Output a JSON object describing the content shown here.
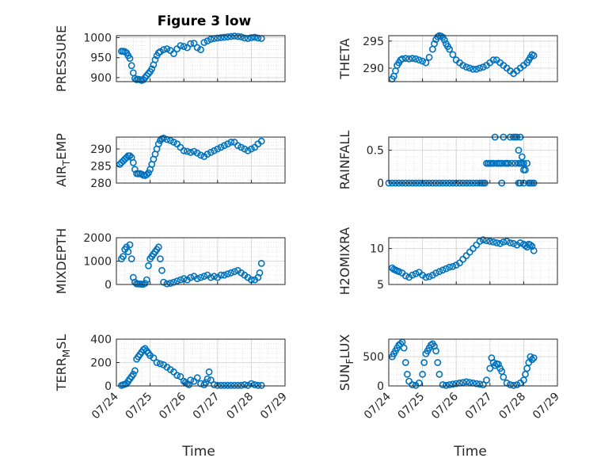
{
  "figure": {
    "title": "Figure 3 low",
    "xlabel": "Time"
  },
  "colors": {
    "marker": "#0072BD",
    "grid": "#d9d9d9",
    "axis": "#262626"
  },
  "x_ticks": [
    "07/24",
    "07/25",
    "07/26",
    "07/27",
    "07/28",
    "07/29"
  ],
  "chart_data": [
    {
      "type": "scatter",
      "ylabel": "PRESSURE",
      "title": "Figure 3 low",
      "xlim": [
        "07/24",
        "07/29"
      ],
      "ylim": [
        890,
        1005
      ],
      "yticks": [
        900,
        950,
        1000
      ],
      "x": [
        0.15,
        0.2,
        0.25,
        0.3,
        0.35,
        0.4,
        0.45,
        0.5,
        0.55,
        0.6,
        0.65,
        0.7,
        0.75,
        0.8,
        0.85,
        0.9,
        0.95,
        1.0,
        1.05,
        1.1,
        1.15,
        1.2,
        1.25,
        1.3,
        1.4,
        1.5,
        1.6,
        1.7,
        1.8,
        1.9,
        2.0,
        2.1,
        2.2,
        2.3,
        2.4,
        2.5,
        2.6,
        2.7,
        2.8,
        2.9,
        3.0,
        3.1,
        3.2,
        3.3,
        3.4,
        3.5,
        3.6,
        3.7,
        3.8,
        3.9,
        4.0,
        4.1,
        4.2,
        4.3
      ],
      "y": [
        966,
        966,
        965,
        962,
        955,
        948,
        930,
        912,
        898,
        895,
        896,
        895,
        893,
        895,
        900,
        905,
        910,
        915,
        922,
        932,
        945,
        955,
        962,
        965,
        970,
        972,
        968,
        960,
        972,
        980,
        978,
        975,
        985,
        986,
        975,
        970,
        988,
        992,
        996,
        998,
        999,
        1000,
        1001,
        1002,
        1003,
        1004,
        1003,
        1002,
        999,
        998,
        1000,
        1001,
        999,
        998
      ]
    },
    {
      "type": "scatter",
      "ylabel": "THETA",
      "xlim": [
        "07/24",
        "07/29"
      ],
      "ylim": [
        287.5,
        296
      ],
      "yticks": [
        290,
        295
      ],
      "x": [
        0.1,
        0.15,
        0.2,
        0.25,
        0.3,
        0.35,
        0.4,
        0.5,
        0.6,
        0.7,
        0.8,
        0.9,
        1.0,
        1.1,
        1.2,
        1.3,
        1.35,
        1.4,
        1.45,
        1.5,
        1.55,
        1.6,
        1.65,
        1.7,
        1.75,
        1.8,
        1.9,
        2.0,
        2.1,
        2.2,
        2.3,
        2.4,
        2.5,
        2.6,
        2.7,
        2.8,
        2.9,
        3.0,
        3.1,
        3.2,
        3.3,
        3.4,
        3.5,
        3.6,
        3.7,
        3.8,
        3.9,
        4.0,
        4.1,
        4.15,
        4.2,
        4.25,
        4.3
      ],
      "y": [
        288,
        288.5,
        289.5,
        290.5,
        291,
        291.5,
        291.7,
        291.8,
        291.7,
        291.8,
        291.7,
        291.5,
        291.3,
        291.0,
        292.0,
        293.5,
        294.5,
        295.3,
        295.8,
        296.0,
        295.9,
        295.7,
        295.2,
        294.5,
        294.0,
        293.5,
        292.5,
        291.5,
        291.0,
        290.5,
        290.2,
        290.0,
        289.8,
        289.8,
        290.0,
        290.2,
        290.5,
        291.0,
        291.5,
        291.5,
        291.0,
        290.5,
        290.0,
        289.5,
        289.0,
        289.5,
        290.0,
        290.5,
        291.0,
        291.5,
        292.0,
        292.5,
        292.3
      ]
    },
    {
      "type": "scatter",
      "ylabel": "AIR_T EMP",
      "xlim": [
        "07/24",
        "07/29"
      ],
      "ylim": [
        280,
        293.5
      ],
      "yticks": [
        280,
        285,
        290
      ],
      "x": [
        0.1,
        0.15,
        0.2,
        0.25,
        0.3,
        0.35,
        0.4,
        0.45,
        0.5,
        0.55,
        0.6,
        0.65,
        0.7,
        0.75,
        0.8,
        0.85,
        0.9,
        0.95,
        1.0,
        1.05,
        1.1,
        1.15,
        1.2,
        1.25,
        1.3,
        1.35,
        1.4,
        1.5,
        1.6,
        1.7,
        1.8,
        1.9,
        2.0,
        2.1,
        2.2,
        2.3,
        2.4,
        2.5,
        2.6,
        2.7,
        2.8,
        2.9,
        3.0,
        3.1,
        3.2,
        3.3,
        3.4,
        3.5,
        3.6,
        3.7,
        3.8,
        3.9,
        4.0,
        4.1,
        4.2,
        4.3
      ],
      "y": [
        285.5,
        286,
        286.5,
        287,
        287.5,
        288,
        288,
        287.5,
        286,
        284,
        282.8,
        282.7,
        282.8,
        282.6,
        282.3,
        282.2,
        282.5,
        283,
        284,
        285.5,
        287,
        288.5,
        290,
        291.5,
        292.5,
        293,
        293.2,
        292.8,
        292.5,
        292.0,
        291.5,
        290.5,
        289.5,
        289.3,
        289.0,
        289.3,
        288.8,
        288.2,
        287.8,
        288.5,
        289.0,
        289.5,
        290.0,
        290.5,
        291.0,
        291.5,
        292.0,
        292.0,
        291.0,
        290.5,
        290.0,
        289.5,
        290.0,
        290.5,
        291.5,
        292.3
      ]
    },
    {
      "type": "scatter",
      "ylabel": "RAINFALL",
      "xlim": [
        "07/24",
        "07/29"
      ],
      "ylim": [
        0,
        0.7
      ],
      "yticks": [
        0,
        0.5
      ],
      "x": [
        0.0,
        0.1,
        0.2,
        0.3,
        0.4,
        0.5,
        0.6,
        0.7,
        0.8,
        0.9,
        1.0,
        1.1,
        1.2,
        1.3,
        1.4,
        1.5,
        1.6,
        1.7,
        1.8,
        1.9,
        2.0,
        2.1,
        2.2,
        2.3,
        2.4,
        2.5,
        2.6,
        2.7,
        2.75,
        2.8,
        2.85,
        2.9,
        2.95,
        3.0,
        3.05,
        3.1,
        3.15,
        3.2,
        3.25,
        3.3,
        3.35,
        3.4,
        3.45,
        3.5,
        3.55,
        3.6,
        3.65,
        3.7,
        3.75,
        3.8,
        3.85,
        3.9,
        3.95,
        4.0,
        4.05,
        4.1,
        4.15,
        4.2,
        4.25,
        4.3,
        3.35,
        3.5,
        3.75,
        3.85,
        3.9,
        3.95,
        4.0,
        3.85,
        3.9,
        3.95,
        4.0
      ],
      "y": [
        0,
        0,
        0,
        0,
        0,
        0,
        0,
        0,
        0,
        0,
        0,
        0,
        0,
        0,
        0,
        0,
        0,
        0,
        0,
        0,
        0,
        0,
        0,
        0,
        0,
        0,
        0,
        0,
        0,
        0,
        0,
        0.3,
        0.3,
        0.3,
        0.3,
        0.3,
        0.7,
        0.3,
        0.3,
        0.3,
        0.3,
        0.7,
        0.3,
        0.3,
        0.3,
        0.7,
        0.3,
        0.7,
        0.7,
        0.7,
        0.5,
        0.7,
        0.3,
        0.2,
        0.2,
        0.3,
        0,
        0,
        0,
        0,
        0,
        0.3,
        0.3,
        0,
        0,
        0.3,
        0,
        0.3,
        0.3,
        0.4,
        0.3
      ]
    },
    {
      "type": "scatter",
      "ylabel": "MIXDEPTH",
      "xlim": [
        "07/24",
        "07/29"
      ],
      "ylim": [
        0,
        2000
      ],
      "yticks": [
        0,
        1000,
        2000
      ],
      "x": [
        0.15,
        0.2,
        0.25,
        0.3,
        0.35,
        0.4,
        0.45,
        0.5,
        0.55,
        0.6,
        0.65,
        0.7,
        0.75,
        0.8,
        0.85,
        0.9,
        0.95,
        1.0,
        1.05,
        1.1,
        1.15,
        1.2,
        1.25,
        1.3,
        1.35,
        1.4,
        1.5,
        1.6,
        1.7,
        1.8,
        1.9,
        2.0,
        2.1,
        2.2,
        2.3,
        2.4,
        2.5,
        2.6,
        2.7,
        2.8,
        2.9,
        3.0,
        3.1,
        3.2,
        3.3,
        3.4,
        3.5,
        3.6,
        3.7,
        3.8,
        3.9,
        4.0,
        4.1,
        4.2,
        4.25,
        4.3
      ],
      "y": [
        1100,
        1200,
        1500,
        1600,
        1400,
        1700,
        1100,
        300,
        100,
        30,
        20,
        20,
        10,
        10,
        50,
        200,
        800,
        1100,
        1200,
        1300,
        1400,
        1500,
        1600,
        1100,
        600,
        100,
        30,
        50,
        100,
        150,
        200,
        250,
        200,
        300,
        350,
        250,
        300,
        350,
        400,
        300,
        350,
        300,
        400,
        400,
        450,
        500,
        550,
        600,
        500,
        400,
        300,
        200,
        200,
        300,
        500,
        900
      ]
    },
    {
      "type": "scatter",
      "ylabel": "H2OMIXRA",
      "xlim": [
        "07/24",
        "07/29"
      ],
      "ylim": [
        5,
        11.5
      ],
      "yticks": [
        5,
        10
      ],
      "x": [
        0.1,
        0.15,
        0.2,
        0.25,
        0.3,
        0.4,
        0.5,
        0.6,
        0.7,
        0.8,
        0.9,
        1.0,
        1.1,
        1.2,
        1.3,
        1.4,
        1.5,
        1.6,
        1.7,
        1.8,
        1.9,
        2.0,
        2.1,
        2.2,
        2.3,
        2.4,
        2.5,
        2.6,
        2.7,
        2.8,
        2.9,
        3.0,
        3.1,
        3.2,
        3.3,
        3.4,
        3.5,
        3.6,
        3.7,
        3.8,
        3.9,
        4.0,
        4.05,
        4.1,
        4.15,
        4.2,
        4.25,
        4.3
      ],
      "y": [
        7.3,
        7.1,
        7.0,
        6.9,
        6.8,
        6.6,
        6.2,
        6.0,
        6.3,
        6.5,
        6.7,
        6.3,
        6.0,
        6.1,
        6.3,
        6.6,
        6.8,
        7.0,
        7.2,
        7.4,
        7.5,
        7.7,
        8.0,
        8.5,
        9.0,
        9.5,
        10.0,
        10.5,
        11.0,
        11.2,
        11.1,
        11.0,
        10.9,
        10.8,
        10.7,
        10.9,
        11.0,
        10.8,
        10.7,
        10.5,
        10.8,
        10.6,
        10.4,
        10.2,
        10.6,
        10.5,
        10.3,
        9.7
      ]
    },
    {
      "type": "scatter",
      "ylabel": "TERR_M SL",
      "xlim": [
        "07/24",
        "07/29"
      ],
      "ylim": [
        0,
        400
      ],
      "yticks": [
        0,
        200,
        400
      ],
      "x": [
        0.15,
        0.2,
        0.25,
        0.3,
        0.35,
        0.4,
        0.45,
        0.5,
        0.55,
        0.6,
        0.65,
        0.7,
        0.75,
        0.8,
        0.85,
        0.9,
        0.95,
        1.0,
        1.1,
        1.2,
        1.3,
        1.4,
        1.5,
        1.6,
        1.7,
        1.8,
        1.9,
        2.0,
        2.05,
        2.1,
        2.15,
        2.2,
        2.3,
        2.4,
        2.5,
        2.6,
        2.65,
        2.7,
        2.75,
        2.8,
        2.9,
        3.0,
        3.1,
        3.2,
        3.3,
        3.4,
        3.5,
        3.6,
        3.7,
        3.8,
        3.9,
        4.0,
        4.1,
        4.2,
        4.3
      ],
      "y": [
        5,
        10,
        15,
        20,
        40,
        60,
        80,
        100,
        130,
        230,
        250,
        270,
        290,
        310,
        320,
        300,
        280,
        260,
        240,
        200,
        190,
        180,
        160,
        140,
        120,
        90,
        80,
        40,
        30,
        20,
        10,
        50,
        40,
        70,
        20,
        10,
        30,
        60,
        120,
        50,
        10,
        5,
        5,
        5,
        5,
        5,
        5,
        5,
        5,
        10,
        5,
        20,
        10,
        5,
        5
      ]
    },
    {
      "type": "scatter",
      "ylabel": "SUN_F LUX",
      "xlim": [
        "07/24",
        "07/29"
      ],
      "ylim": [
        0,
        800
      ],
      "yticks": [
        0,
        500
      ],
      "x": [
        0.1,
        0.15,
        0.2,
        0.25,
        0.3,
        0.35,
        0.4,
        0.45,
        0.5,
        0.55,
        0.6,
        0.7,
        0.8,
        0.9,
        1.0,
        1.05,
        1.1,
        1.15,
        1.2,
        1.25,
        1.3,
        1.35,
        1.4,
        1.45,
        1.5,
        1.6,
        1.7,
        1.8,
        1.9,
        2.0,
        2.1,
        2.2,
        2.3,
        2.4,
        2.5,
        2.6,
        2.7,
        2.8,
        2.9,
        3.0,
        3.05,
        3.1,
        3.15,
        3.2,
        3.25,
        3.3,
        3.35,
        3.4,
        3.5,
        3.6,
        3.7,
        3.8,
        3.9,
        4.0,
        4.05,
        4.1,
        4.15,
        4.2,
        4.25,
        4.3
      ],
      "y": [
        500,
        550,
        600,
        650,
        700,
        720,
        750,
        650,
        400,
        200,
        80,
        20,
        10,
        50,
        200,
        400,
        550,
        600,
        650,
        700,
        720,
        680,
        600,
        400,
        200,
        20,
        10,
        20,
        30,
        40,
        50,
        60,
        70,
        60,
        50,
        40,
        30,
        20,
        100,
        300,
        480,
        400,
        350,
        380,
        370,
        300,
        250,
        150,
        50,
        20,
        10,
        20,
        50,
        100,
        200,
        300,
        400,
        500,
        450,
        480
      ]
    }
  ]
}
